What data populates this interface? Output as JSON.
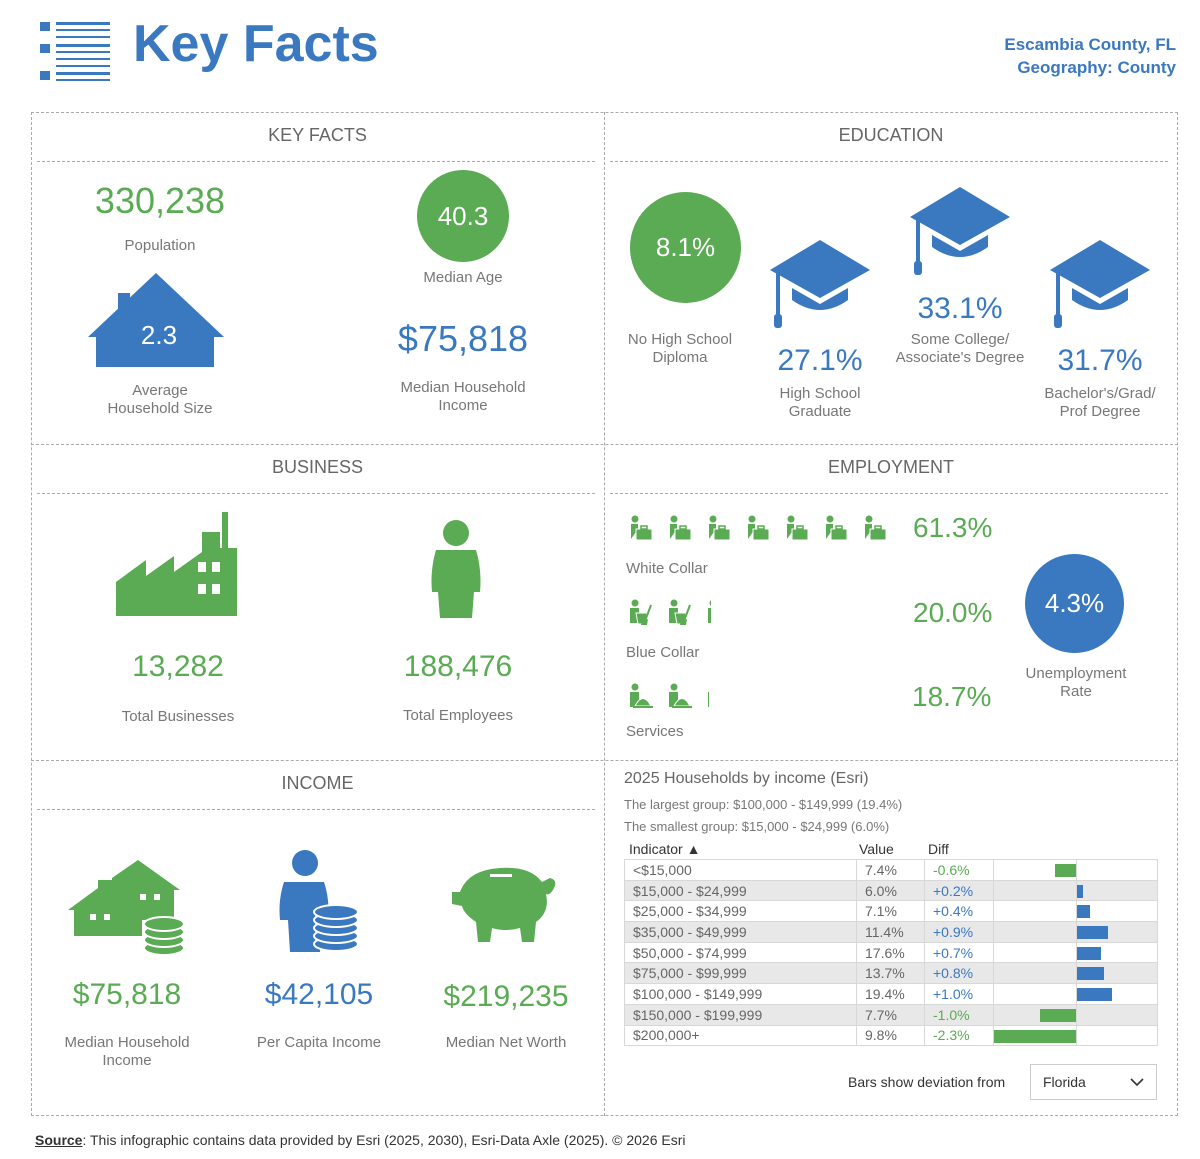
{
  "header": {
    "title": "Key Facts",
    "location": "Escambia County, FL",
    "geography": "Geography: County",
    "icon": "list-icon"
  },
  "colors": {
    "green": "#5aab53",
    "blue": "#3a78c0"
  },
  "key_facts": {
    "title": "KEY FACTS",
    "population": "330,238",
    "population_label": "Population",
    "median_age": "40.3",
    "median_age_label": "Median Age",
    "household_size": "2.3",
    "household_size_label": [
      "Average",
      "Household Size"
    ],
    "median_income": "$75,818",
    "median_income_label": [
      "Median Household",
      "Income"
    ]
  },
  "education": {
    "title": "EDUCATION",
    "items": [
      {
        "value": "8.1%",
        "label": [
          "No High School",
          "Diploma"
        ]
      },
      {
        "value": "27.1%",
        "label": [
          "High School",
          "Graduate"
        ]
      },
      {
        "value": "33.1%",
        "label": [
          "Some College/",
          "Associate's Degree"
        ]
      },
      {
        "value": "31.7%",
        "label": [
          "Bachelor's/Grad/",
          "Prof Degree"
        ]
      }
    ]
  },
  "business": {
    "title": "BUSINESS",
    "total_businesses": "13,282",
    "total_businesses_label": "Total Businesses",
    "total_employees": "188,476",
    "total_employees_label": "Total Employees"
  },
  "employment": {
    "title": "EMPLOYMENT",
    "white_collar": {
      "value": "61.3%",
      "label": "White Collar",
      "icons": 7
    },
    "blue_collar": {
      "value": "20.0%",
      "label": "Blue Collar",
      "icons": 2.2
    },
    "services": {
      "value": "18.7%",
      "label": "Services",
      "icons": 2.1
    },
    "unemployment": {
      "value": "4.3%",
      "label": [
        "Unemployment",
        "Rate"
      ]
    }
  },
  "income": {
    "title": "INCOME",
    "median_household": "$75,818",
    "median_household_label": [
      "Median Household",
      "Income"
    ],
    "per_capita": "$42,105",
    "per_capita_label": "Per Capita Income",
    "net_worth": "$219,235",
    "net_worth_label": "Median Net Worth"
  },
  "households": {
    "title": "2025 Households by income (Esri)",
    "largest": "The largest group: $100,000 - $149,999 (19.4%)",
    "smallest": "The smallest group: $15,000 - $24,999 (6.0%)",
    "columns": [
      "Indicator ▲",
      "Value",
      "Diff"
    ],
    "rows": [
      {
        "indicator": "<$15,000",
        "value": "7.4%",
        "diff": "-0.6%",
        "d": -0.6
      },
      {
        "indicator": "$15,000 - $24,999",
        "value": "6.0%",
        "diff": "+0.2%",
        "d": 0.2
      },
      {
        "indicator": "$25,000 - $34,999",
        "value": "7.1%",
        "diff": "+0.4%",
        "d": 0.4
      },
      {
        "indicator": "$35,000 - $49,999",
        "value": "11.4%",
        "diff": "+0.9%",
        "d": 0.9
      },
      {
        "indicator": "$50,000 - $74,999",
        "value": "17.6%",
        "diff": "+0.7%",
        "d": 0.7
      },
      {
        "indicator": "$75,000 - $99,999",
        "value": "13.7%",
        "diff": "+0.8%",
        "d": 0.8
      },
      {
        "indicator": "$100,000 - $149,999",
        "value": "19.4%",
        "diff": "+1.0%",
        "d": 1.0
      },
      {
        "indicator": "$150,000 - $199,999",
        "value": "7.7%",
        "diff": "-1.0%",
        "d": -1.0
      },
      {
        "indicator": "$200,000+",
        "value": "9.8%",
        "diff": "-2.3%",
        "d": -2.3
      }
    ],
    "deviation_label": "Bars show deviation from",
    "deviation_value": "Florida"
  },
  "footer": {
    "source_label": "Source",
    "text": ": This infographic contains data provided by Esri (2025, 2030), Esri-Data Axle (2025). © 2026 Esri"
  }
}
